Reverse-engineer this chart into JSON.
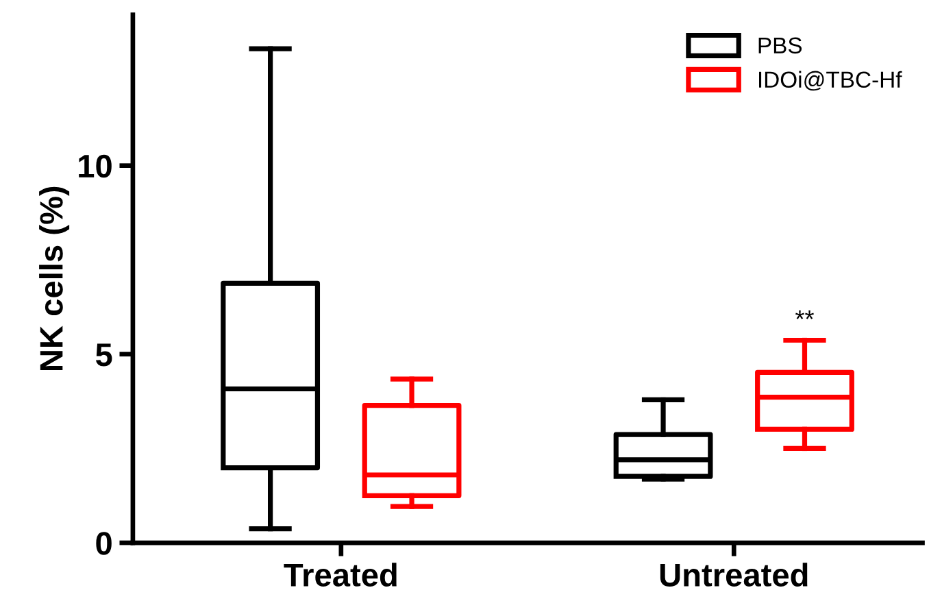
{
  "chart_data": {
    "type": "box",
    "ylabel": "NK cells (%)",
    "categories": [
      "Treated",
      "Untreated"
    ],
    "ylim": [
      0,
      14
    ],
    "yticks": [
      0,
      5,
      10
    ],
    "grid": false,
    "legend": "top right",
    "series": [
      {
        "name": "PBS",
        "color": "#000000",
        "boxes": [
          {
            "low": 0.37,
            "q1": 1.99,
            "median": 4.08,
            "q3": 6.88,
            "high": 13.1
          },
          {
            "low": 1.69,
            "q1": 1.76,
            "median": 2.2,
            "q3": 2.87,
            "high": 3.79
          }
        ]
      },
      {
        "name": "IDOi@TBC-Hf",
        "color": "#ff0000",
        "boxes": [
          {
            "low": 0.96,
            "q1": 1.25,
            "median": 1.8,
            "q3": 3.64,
            "high": 4.34
          },
          {
            "low": 2.5,
            "q1": 3.01,
            "median": 3.86,
            "q3": 4.52,
            "high": 5.37
          }
        ]
      }
    ],
    "annotations": [
      "**"
    ]
  }
}
